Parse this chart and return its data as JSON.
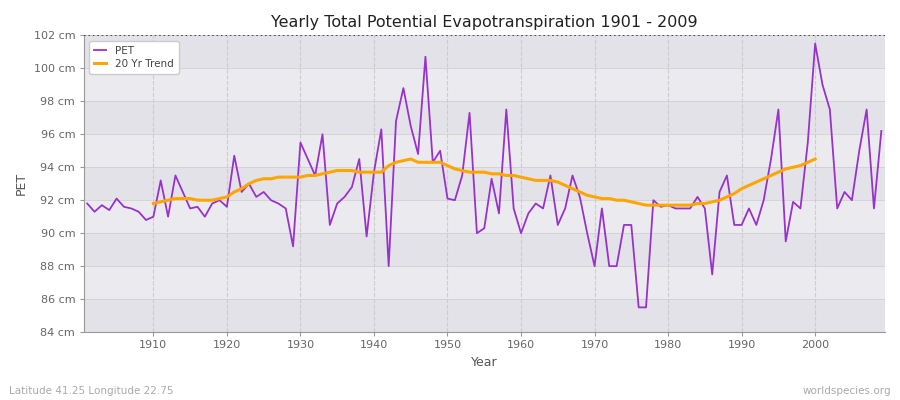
{
  "title": "Yearly Total Potential Evapotranspiration 1901 - 2009",
  "xlabel": "Year",
  "ylabel": "PET",
  "bottom_left": "Latitude 41.25 Longitude 22.75",
  "bottom_right": "worldspecies.org",
  "ylim": [
    84,
    102
  ],
  "xlim": [
    1901,
    2009
  ],
  "yticks": [
    84,
    86,
    88,
    90,
    92,
    94,
    96,
    98,
    100,
    102
  ],
  "xticks": [
    1910,
    1920,
    1930,
    1940,
    1950,
    1960,
    1970,
    1980,
    1990,
    2000
  ],
  "pet_color": "#9932CC",
  "trend_color": "#FFA500",
  "fig_bg": "#ffffff",
  "plot_bg_light": "#f0f0f0",
  "plot_bg_dark": "#e4e4e8",
  "dotted_line_y": 102,
  "years": [
    1901,
    1902,
    1903,
    1904,
    1905,
    1906,
    1907,
    1908,
    1909,
    1910,
    1911,
    1912,
    1913,
    1914,
    1915,
    1916,
    1917,
    1918,
    1919,
    1920,
    1921,
    1922,
    1923,
    1924,
    1925,
    1926,
    1927,
    1928,
    1929,
    1930,
    1931,
    1932,
    1933,
    1934,
    1935,
    1936,
    1937,
    1938,
    1939,
    1940,
    1941,
    1942,
    1943,
    1944,
    1945,
    1946,
    1947,
    1948,
    1949,
    1950,
    1951,
    1952,
    1953,
    1954,
    1955,
    1956,
    1957,
    1958,
    1959,
    1960,
    1961,
    1962,
    1963,
    1964,
    1965,
    1966,
    1967,
    1968,
    1969,
    1970,
    1971,
    1972,
    1973,
    1974,
    1975,
    1976,
    1977,
    1978,
    1979,
    1980,
    1981,
    1982,
    1983,
    1984,
    1985,
    1986,
    1987,
    1988,
    1989,
    1990,
    1991,
    1992,
    1993,
    1994,
    1995,
    1996,
    1997,
    1998,
    1999,
    2000,
    2001,
    2002,
    2003,
    2004,
    2005,
    2006,
    2007,
    2008,
    2009
  ],
  "pet": [
    91.8,
    91.3,
    91.7,
    91.4,
    92.1,
    91.6,
    91.5,
    91.3,
    90.8,
    91.0,
    93.2,
    91.0,
    93.5,
    92.5,
    91.5,
    91.6,
    91.0,
    91.8,
    92.0,
    91.6,
    94.7,
    92.5,
    93.0,
    92.2,
    92.5,
    92.0,
    91.8,
    91.5,
    89.2,
    95.5,
    94.5,
    93.5,
    96.0,
    90.5,
    91.8,
    92.2,
    92.8,
    94.5,
    89.8,
    93.7,
    96.3,
    88.0,
    96.8,
    98.8,
    96.5,
    94.8,
    100.7,
    94.3,
    95.0,
    92.1,
    92.0,
    93.5,
    97.3,
    90.0,
    90.3,
    93.3,
    91.2,
    97.5,
    91.5,
    90.0,
    91.2,
    91.8,
    91.5,
    93.5,
    90.5,
    91.5,
    93.5,
    92.2,
    90.0,
    88.0,
    91.5,
    88.0,
    88.0,
    90.5,
    90.5,
    85.5,
    85.5,
    92.0,
    91.6,
    91.7,
    91.5,
    91.5,
    91.5,
    92.2,
    91.5,
    87.5,
    92.5,
    93.5,
    90.5,
    90.5,
    91.5,
    90.5,
    92.0,
    94.5,
    97.5,
    89.5,
    91.9,
    91.5,
    95.5,
    101.5,
    99.0,
    97.5,
    91.5,
    92.5,
    92.0,
    95.0,
    97.5,
    91.5,
    96.2
  ],
  "trend": [
    null,
    null,
    null,
    null,
    null,
    null,
    null,
    null,
    null,
    91.8,
    91.9,
    92.0,
    92.1,
    92.1,
    92.1,
    92.0,
    92.0,
    92.0,
    92.1,
    92.2,
    92.5,
    92.7,
    93.0,
    93.2,
    93.3,
    93.3,
    93.4,
    93.4,
    93.4,
    93.4,
    93.5,
    93.5,
    93.6,
    93.7,
    93.8,
    93.8,
    93.8,
    93.7,
    93.7,
    93.7,
    93.7,
    94.1,
    94.3,
    94.4,
    94.5,
    94.3,
    94.3,
    94.3,
    94.3,
    94.1,
    93.9,
    93.8,
    93.7,
    93.7,
    93.7,
    93.6,
    93.6,
    93.5,
    93.5,
    93.4,
    93.3,
    93.2,
    93.2,
    93.2,
    93.1,
    92.9,
    92.7,
    92.5,
    92.3,
    92.2,
    92.1,
    92.1,
    92.0,
    92.0,
    91.9,
    91.8,
    91.7,
    91.7,
    91.7,
    91.7,
    91.7,
    91.7,
    91.7,
    91.8,
    91.8,
    91.9,
    92.0,
    92.2,
    92.4,
    92.7,
    92.9,
    93.1,
    93.3,
    93.5,
    93.7,
    93.9,
    94.0,
    94.1,
    94.3,
    94.5,
    null,
    null,
    null,
    null
  ]
}
